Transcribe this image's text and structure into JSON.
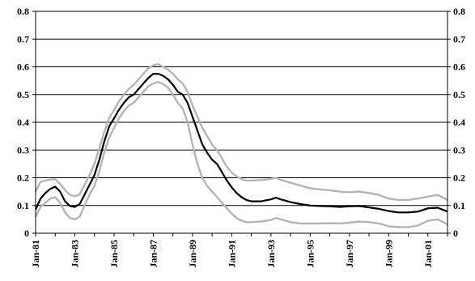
{
  "chart_data": {
    "type": "line",
    "title": "",
    "xlabel": "",
    "ylabel": "",
    "x_tick_labels": [
      "Jan-81",
      "Jan-83",
      "Jan-85",
      "Jan-87",
      "Jan-89",
      "Jan-91",
      "Jan-93",
      "Jan-95",
      "Jan-97",
      "Jan-99",
      "Jan-01"
    ],
    "y_tick_labels": [
      "0",
      "0.1",
      "0.2",
      "0.3",
      "0.4",
      "0.5",
      "0.6",
      "0.7",
      "0.8"
    ],
    "y_tick_labels_right": [
      "0",
      "0.1",
      "0.2",
      "0.3",
      "0.4",
      "0.5",
      "0.6",
      "0.7",
      "0.8"
    ],
    "xlim": [
      "1981-01",
      "2002-01"
    ],
    "ylim": [
      0,
      0.8
    ],
    "grid": "horizontal",
    "legend": "none",
    "x": [
      "1981-01",
      "1981-04",
      "1981-07",
      "1981-10",
      "1982-01",
      "1982-04",
      "1982-07",
      "1982-10",
      "1983-01",
      "1983-04",
      "1983-07",
      "1983-10",
      "1984-01",
      "1984-04",
      "1984-07",
      "1984-10",
      "1985-01",
      "1985-04",
      "1985-07",
      "1985-10",
      "1986-01",
      "1986-04",
      "1986-07",
      "1986-10",
      "1987-01",
      "1987-04",
      "1987-07",
      "1987-10",
      "1988-01",
      "1988-04",
      "1988-07",
      "1988-10",
      "1989-01",
      "1989-04",
      "1989-07",
      "1989-10",
      "1990-01",
      "1990-04",
      "1990-07",
      "1990-10",
      "1991-01",
      "1991-04",
      "1991-07",
      "1991-10",
      "1992-01",
      "1992-07",
      "1993-01",
      "1993-04",
      "1993-07",
      "1994-01",
      "1994-07",
      "1995-01",
      "1995-07",
      "1996-01",
      "1996-07",
      "1997-01",
      "1997-07",
      "1998-01",
      "1998-07",
      "1999-01",
      "1999-07",
      "2000-01",
      "2000-07",
      "2001-01",
      "2001-07",
      "2002-01"
    ],
    "series": [
      {
        "color": "#000000",
        "values": [
          0.085,
          0.125,
          0.145,
          0.16,
          0.168,
          0.15,
          0.115,
          0.098,
          0.095,
          0.105,
          0.14,
          0.175,
          0.21,
          0.265,
          0.33,
          0.385,
          0.415,
          0.445,
          0.47,
          0.49,
          0.5,
          0.52,
          0.54,
          0.56,
          0.575,
          0.575,
          0.568,
          0.555,
          0.535,
          0.51,
          0.5,
          0.47,
          0.42,
          0.37,
          0.32,
          0.29,
          0.265,
          0.25,
          0.22,
          0.19,
          0.165,
          0.145,
          0.13,
          0.12,
          0.115,
          0.115,
          0.122,
          0.128,
          0.122,
          0.112,
          0.105,
          0.1,
          0.098,
          0.097,
          0.095,
          0.097,
          0.098,
          0.093,
          0.088,
          0.08,
          0.075,
          0.075,
          0.078,
          0.09,
          0.092,
          0.078
        ]
      },
      {
        "color": "#b4b4b4",
        "values": [
          0.15,
          0.185,
          0.19,
          0.193,
          0.195,
          0.178,
          0.155,
          0.138,
          0.133,
          0.14,
          0.175,
          0.21,
          0.25,
          0.305,
          0.365,
          0.415,
          0.445,
          0.475,
          0.5,
          0.52,
          0.535,
          0.555,
          0.575,
          0.595,
          0.605,
          0.61,
          0.6,
          0.59,
          0.575,
          0.555,
          0.54,
          0.51,
          0.46,
          0.42,
          0.38,
          0.35,
          0.32,
          0.3,
          0.27,
          0.24,
          0.218,
          0.205,
          0.195,
          0.19,
          0.19,
          0.192,
          0.196,
          0.2,
          0.192,
          0.182,
          0.172,
          0.162,
          0.158,
          0.155,
          0.15,
          0.148,
          0.15,
          0.145,
          0.138,
          0.125,
          0.12,
          0.12,
          0.125,
          0.132,
          0.138,
          0.12
        ]
      },
      {
        "color": "#b4b4b4",
        "values": [
          0.06,
          0.095,
          0.11,
          0.125,
          0.13,
          0.11,
          0.075,
          0.055,
          0.05,
          0.06,
          0.1,
          0.14,
          0.17,
          0.225,
          0.29,
          0.345,
          0.38,
          0.415,
          0.44,
          0.46,
          0.47,
          0.49,
          0.51,
          0.53,
          0.54,
          0.545,
          0.538,
          0.525,
          0.5,
          0.47,
          0.45,
          0.4,
          0.32,
          0.25,
          0.2,
          0.17,
          0.15,
          0.13,
          0.11,
          0.09,
          0.07,
          0.055,
          0.045,
          0.04,
          0.04,
          0.042,
          0.048,
          0.055,
          0.05,
          0.04,
          0.035,
          0.035,
          0.035,
          0.036,
          0.035,
          0.038,
          0.042,
          0.04,
          0.035,
          0.025,
          0.022,
          0.022,
          0.028,
          0.045,
          0.05,
          0.032
        ]
      }
    ]
  }
}
